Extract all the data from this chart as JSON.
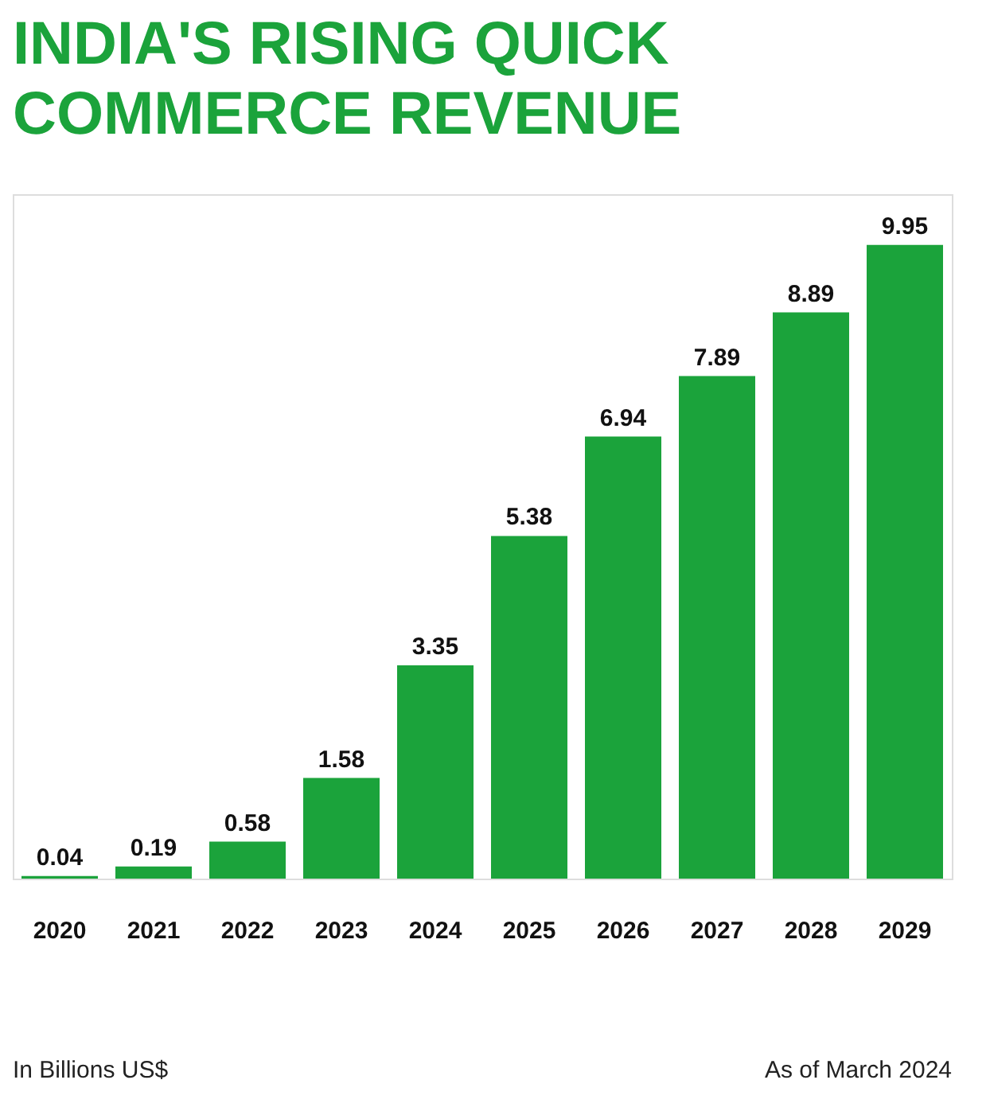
{
  "chart_data": {
    "type": "bar",
    "title": "INDIA'S RISING QUICK COMMERCE REVENUE",
    "categories": [
      "2020",
      "2021",
      "2022",
      "2023",
      "2024",
      "2025",
      "2026",
      "2027",
      "2028",
      "2029"
    ],
    "values": [
      0.04,
      0.19,
      0.58,
      1.58,
      3.35,
      5.38,
      6.94,
      7.89,
      8.89,
      9.95
    ],
    "color": "#1ba33b",
    "data_labels": true,
    "annotations": [
      "In Billions US$",
      "As of March 2024"
    ]
  }
}
